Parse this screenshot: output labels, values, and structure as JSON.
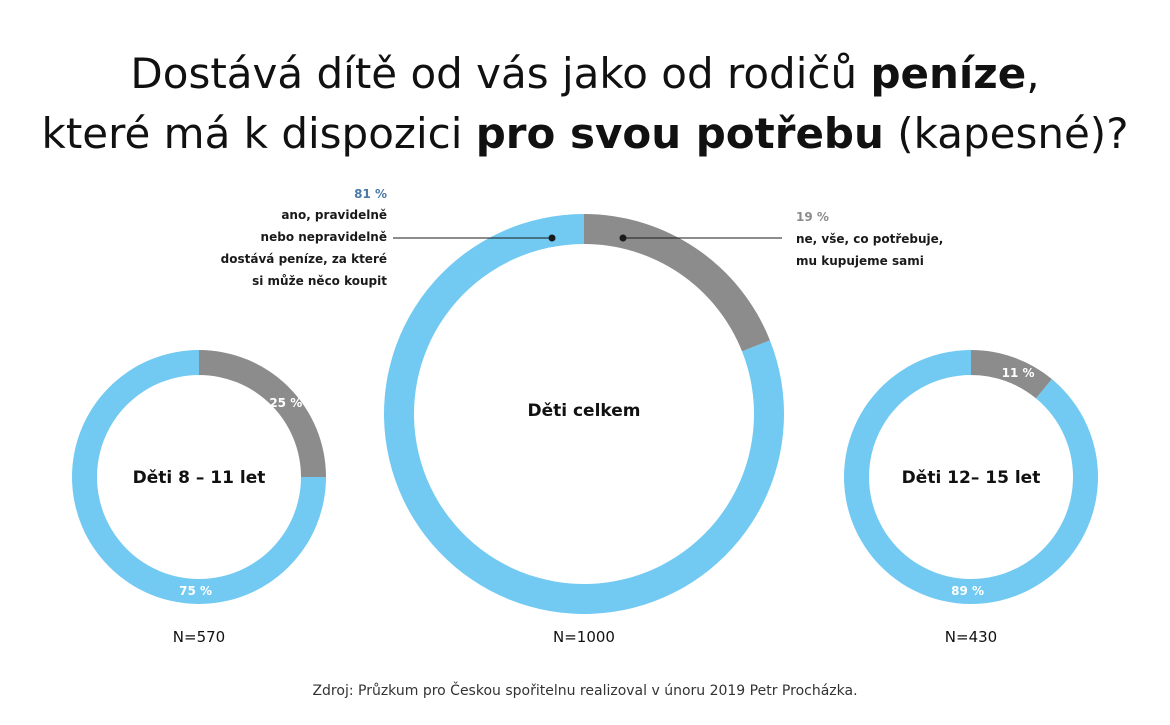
{
  "title": {
    "line1_pre": "Dostává dítě od vás jako od rodičů ",
    "line1_bold": "peníze",
    "line1_post": ",",
    "line2_pre": "které má k dispozici ",
    "line2_bold": "pro svou potřebu",
    "line2_post": " (kapesné)?"
  },
  "colors": {
    "yes": "#72caf2",
    "no": "#8c8c8c",
    "annotation_yes": "#4a7aa8",
    "annotation_no": "#8c8c8c"
  },
  "chart_data": [
    {
      "type": "pie",
      "variant": "donut",
      "center_label": "Děti 8 – 11 let",
      "n_label": "N=570",
      "slices": [
        {
          "key": "yes",
          "value": 75,
          "label": "75  %"
        },
        {
          "key": "no",
          "value": 25,
          "label": "25 %"
        }
      ]
    },
    {
      "type": "pie",
      "variant": "donut",
      "center_label": "Děti celkem",
      "n_label": "N=1000",
      "slices": [
        {
          "key": "yes",
          "value": 81,
          "label": ""
        },
        {
          "key": "no",
          "value": 19,
          "label": ""
        }
      ]
    },
    {
      "type": "pie",
      "variant": "donut",
      "center_label": "Děti 12– 15 let",
      "n_label": "N=430",
      "slices": [
        {
          "key": "yes",
          "value": 89,
          "label": "89  %"
        },
        {
          "key": "no",
          "value": 11,
          "label": "11 %"
        }
      ]
    }
  ],
  "annotations": {
    "yes": {
      "pct": "81 %",
      "lines": [
        "ano, pravidelně",
        "nebo nepravidelně",
        "dostává peníze, za které",
        "si může něco koupit"
      ]
    },
    "no": {
      "pct": "19 %",
      "lines": [
        "ne, vše, co potřebuje,",
        "mu kupujeme sami"
      ]
    }
  },
  "source": "Zdroj: Průzkum pro Českou spořitelnu realizoval v únoru 2019 Petr Procházka."
}
